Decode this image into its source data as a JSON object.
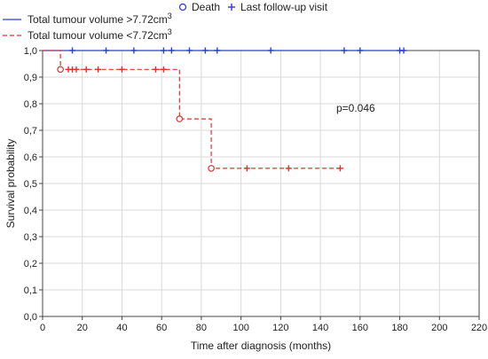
{
  "chart_data": {
    "type": "line",
    "subtype": "kaplan-meier",
    "xlabel": "Time after diagnosis (months)",
    "ylabel": "Survival probability",
    "xlim": [
      0,
      220
    ],
    "ylim": [
      0.0,
      1.0
    ],
    "x_ticks": [
      "0",
      "20",
      "40",
      "60",
      "80",
      "100",
      "120",
      "140",
      "160",
      "180",
      "200",
      "220"
    ],
    "y_ticks": [
      "0,0",
      "0,1",
      "0,2",
      "0,3",
      "0,4",
      "0,5",
      "0,6",
      "0,7",
      "0,8",
      "0,9",
      "1,0"
    ],
    "grid": true,
    "marker_legend": {
      "death": {
        "label": "Death",
        "symbol": "circle",
        "color": "#3333cc"
      },
      "censor": {
        "label": "Last follow-up visit",
        "symbol": "plus",
        "color": "#3333cc"
      }
    },
    "series": [
      {
        "name": "Total tumour volume >7.72cm",
        "name_sup": "3",
        "color": "#2b3fcf",
        "dash": "solid",
        "x_end": 183,
        "steps": [
          [
            0,
            1.0
          ],
          [
            183,
            1.0
          ]
        ],
        "deaths": [],
        "censored": [
          [
            15,
            1.0
          ],
          [
            32,
            1.0
          ],
          [
            46,
            1.0
          ],
          [
            61,
            1.0
          ],
          [
            65,
            1.0
          ],
          [
            74,
            1.0
          ],
          [
            82,
            1.0
          ],
          [
            88,
            1.0
          ],
          [
            115,
            1.0
          ],
          [
            152,
            1.0
          ],
          [
            160,
            1.0
          ],
          [
            180,
            1.0
          ],
          [
            182,
            1.0
          ]
        ]
      },
      {
        "name": "Total tumour volume <7.72cm",
        "name_sup": "3",
        "color": "#e03030",
        "dash": "dashed",
        "x_end": 150,
        "steps": [
          [
            0,
            1.0
          ],
          [
            9,
            0.929
          ],
          [
            69,
            0.743
          ],
          [
            85,
            0.557
          ],
          [
            150,
            0.557
          ]
        ],
        "deaths": [
          [
            9,
            0.929
          ],
          [
            69,
            0.743
          ],
          [
            85,
            0.557
          ]
        ],
        "censored": [
          [
            13,
            0.929
          ],
          [
            15,
            0.929
          ],
          [
            17,
            0.929
          ],
          [
            22,
            0.929
          ],
          [
            28,
            0.929
          ],
          [
            40,
            0.929
          ],
          [
            57,
            0.929
          ],
          [
            61,
            0.929
          ],
          [
            103,
            0.557
          ],
          [
            124,
            0.557
          ],
          [
            150,
            0.557
          ]
        ]
      }
    ],
    "annotations": [
      {
        "text": "p=0.046",
        "x": 148,
        "y": 0.77
      }
    ]
  }
}
